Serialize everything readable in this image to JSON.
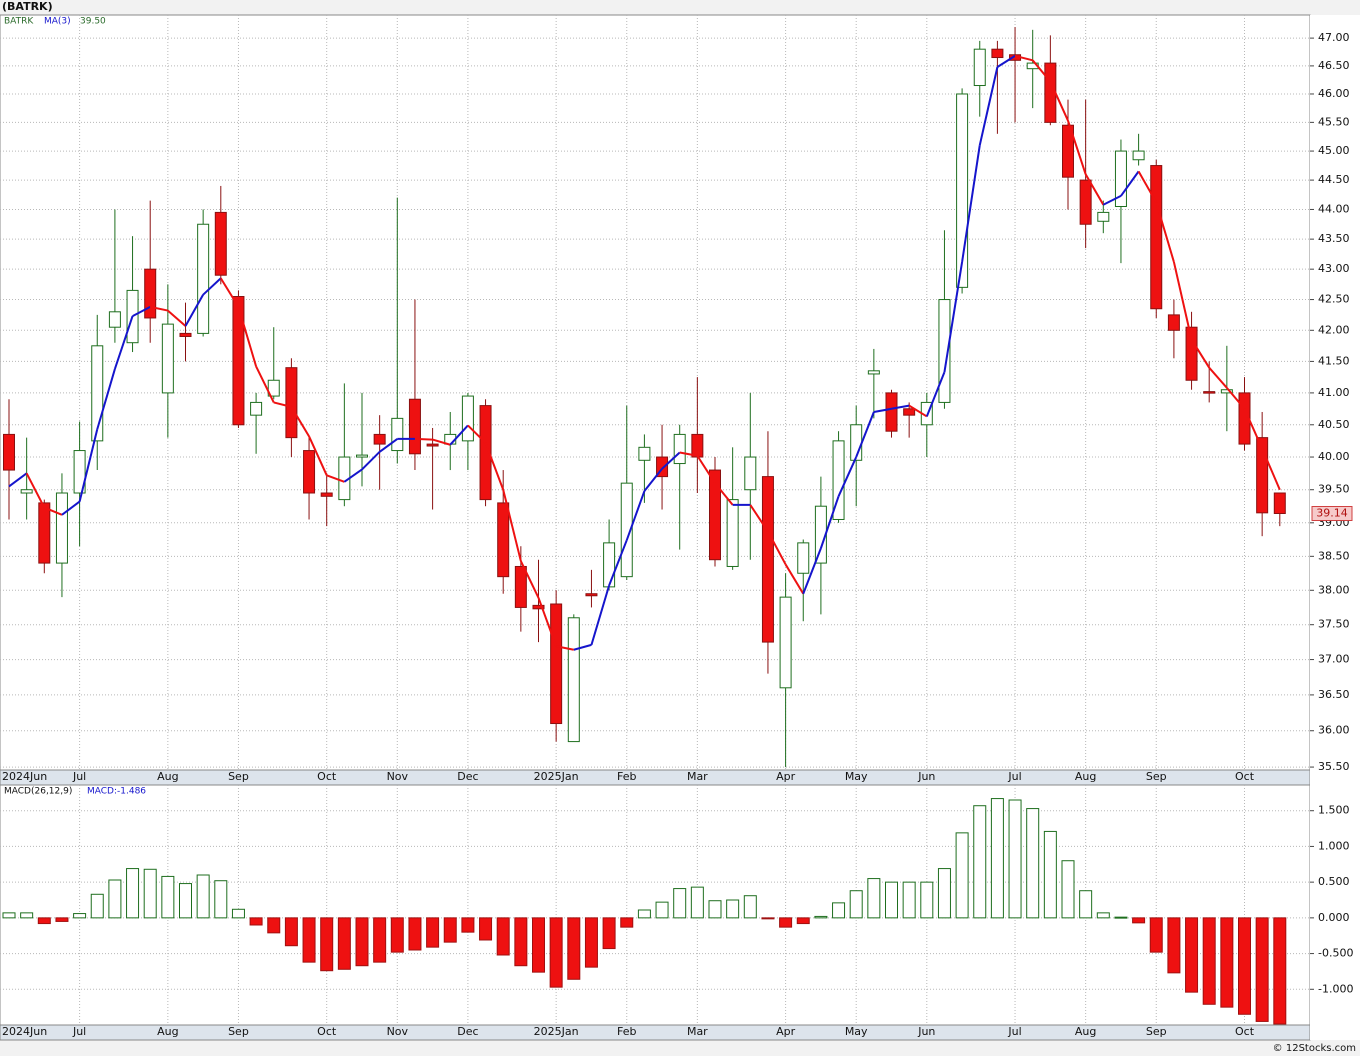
{
  "header": {
    "title": "(BATRK)"
  },
  "chart_data": [
    {
      "type": "candlestick",
      "symbol": "BATRK",
      "categories": [
        "2024Jun",
        null,
        null,
        null,
        "Jul",
        null,
        null,
        null,
        null,
        "Aug",
        null,
        null,
        null,
        "Sep",
        null,
        null,
        null,
        null,
        "Oct",
        null,
        null,
        null,
        "Nov",
        null,
        null,
        null,
        "Dec",
        null,
        null,
        null,
        null,
        "2025Jan",
        null,
        null,
        null,
        "Feb",
        null,
        null,
        null,
        "Mar",
        null,
        null,
        null,
        null,
        "Apr",
        null,
        null,
        null,
        "May",
        null,
        null,
        null,
        "Jun",
        null,
        null,
        null,
        null,
        "Jul",
        null,
        null,
        null,
        "Aug",
        null,
        null,
        null,
        "Sep",
        null,
        null,
        null,
        null,
        "Oct",
        null,
        null
      ],
      "open": [
        40.35,
        39.45,
        39.3,
        38.4,
        39.45,
        40.25,
        42.05,
        41.8,
        43.0,
        41.0,
        41.95,
        41.95,
        43.95,
        42.55,
        40.65,
        40.95,
        41.4,
        40.1,
        39.45,
        39.35,
        40.0,
        40.35,
        40.1,
        40.9,
        40.2,
        40.2,
        40.25,
        40.8,
        39.3,
        38.35,
        37.78,
        37.8,
        35.85,
        37.95,
        38.05,
        38.2,
        39.95,
        40.0,
        39.9,
        40.35,
        39.8,
        38.35,
        39.5,
        39.7,
        36.6,
        38.25,
        38.4,
        39.05,
        39.95,
        41.3,
        41.0,
        40.75,
        40.5,
        40.85,
        42.7,
        46.15,
        46.8,
        46.7,
        46.45,
        46.55,
        45.45,
        44.5,
        43.8,
        44.05,
        44.85,
        44.75,
        42.25,
        42.05,
        41.02,
        41.0,
        41.0,
        40.3,
        39.45
      ],
      "high": [
        40.9,
        40.3,
        39.35,
        39.75,
        40.55,
        42.25,
        44.0,
        43.55,
        44.15,
        42.75,
        42.45,
        44.0,
        44.4,
        42.65,
        41.0,
        42.05,
        41.55,
        40.3,
        39.75,
        41.15,
        41.0,
        40.65,
        44.2,
        42.5,
        40.45,
        40.7,
        41.0,
        40.9,
        39.8,
        38.65,
        38.45,
        38.0,
        37.65,
        38.3,
        39.05,
        40.8,
        40.35,
        40.5,
        40.5,
        41.25,
        40.0,
        40.15,
        41.0,
        40.4,
        38.25,
        38.75,
        39.7,
        40.4,
        40.8,
        41.7,
        41.05,
        40.85,
        41.0,
        43.65,
        46.1,
        46.95,
        46.95,
        47.2,
        47.15,
        47.05,
        45.9,
        45.9,
        44.15,
        45.2,
        45.3,
        44.85,
        42.5,
        42.3,
        41.5,
        41.75,
        41.25,
        40.7,
        39.45
      ],
      "low": [
        39.05,
        39.05,
        38.25,
        37.9,
        38.65,
        39.8,
        41.8,
        41.65,
        41.8,
        40.3,
        41.5,
        41.9,
        42.75,
        40.45,
        40.05,
        40.9,
        40.0,
        39.05,
        38.95,
        39.25,
        39.55,
        39.5,
        39.9,
        39.8,
        39.2,
        39.8,
        39.8,
        39.25,
        37.95,
        37.4,
        37.25,
        35.85,
        35.85,
        37.75,
        38.0,
        38.15,
        39.3,
        39.2,
        38.6,
        39.45,
        38.35,
        38.3,
        38.45,
        36.8,
        35.5,
        37.55,
        37.65,
        39.0,
        39.25,
        40.6,
        40.3,
        40.3,
        40.0,
        40.75,
        42.6,
        45.6,
        45.3,
        45.5,
        45.75,
        45.45,
        44.0,
        43.35,
        43.6,
        43.1,
        44.75,
        42.2,
        41.55,
        41.05,
        40.85,
        40.4,
        40.1,
        38.8,
        38.95
      ],
      "close": [
        39.8,
        39.5,
        38.4,
        39.45,
        40.1,
        41.75,
        42.3,
        42.65,
        42.2,
        42.1,
        41.9,
        43.75,
        42.9,
        40.5,
        40.85,
        41.2,
        40.3,
        39.45,
        39.4,
        40.0,
        40.03,
        40.2,
        40.6,
        40.05,
        40.17,
        40.35,
        40.95,
        39.35,
        38.2,
        37.75,
        37.73,
        36.1,
        37.6,
        37.92,
        38.7,
        39.6,
        40.15,
        39.7,
        40.35,
        40.0,
        38.45,
        39.35,
        40.0,
        37.25,
        37.9,
        38.7,
        39.25,
        40.25,
        40.5,
        41.35,
        40.4,
        40.65,
        40.85,
        42.5,
        46.0,
        46.8,
        46.65,
        46.6,
        46.55,
        45.5,
        44.55,
        43.75,
        43.95,
        45.0,
        45.0,
        42.35,
        42.0,
        41.2,
        41.0,
        41.05,
        40.2,
        39.15,
        39.14
      ],
      "last_label": "39.14",
      "up_color": "#1e6e1e",
      "down_color": "#ee1111",
      "ma": {
        "name": "MA(3)",
        "last_label": "39.50",
        "up_color": "#1515cc",
        "down_color": "#ee1111",
        "values": [
          39.55,
          39.75,
          39.23,
          39.12,
          39.32,
          40.43,
          41.38,
          42.23,
          42.38,
          42.32,
          42.07,
          42.58,
          42.85,
          42.38,
          41.42,
          40.85,
          40.78,
          40.32,
          39.72,
          39.62,
          39.81,
          40.08,
          40.28,
          40.28,
          40.27,
          40.19,
          40.49,
          40.22,
          39.5,
          38.43,
          37.89,
          37.19,
          37.14,
          37.21,
          38.07,
          38.74,
          39.48,
          39.82,
          40.07,
          40.02,
          39.6,
          39.27,
          39.27,
          38.87,
          38.38,
          37.95,
          38.62,
          39.4,
          40.0,
          40.7,
          40.75,
          40.8,
          40.63,
          41.33,
          43.12,
          45.1,
          46.48,
          46.68,
          46.6,
          46.22,
          45.53,
          44.6,
          44.08,
          44.23,
          44.65,
          44.12,
          43.12,
          41.85,
          41.4,
          41.08,
          40.75,
          40.13,
          39.5
        ]
      },
      "ylim": [
        35.46,
        47.42
      ],
      "log_scale": true,
      "grid": true,
      "yticks": [
        {
          "value": 35.5,
          "label": "35.50"
        },
        {
          "value": 36,
          "label": "36.00"
        },
        {
          "value": 36.5,
          "label": "36.50"
        },
        {
          "value": 37,
          "label": "37.00"
        },
        {
          "value": 37.5,
          "label": "37.50"
        },
        {
          "value": 38,
          "label": "38.00"
        },
        {
          "value": 38.5,
          "label": "38.50"
        },
        {
          "value": 39,
          "label": "39.00"
        },
        {
          "value": 39.5,
          "label": "39.50"
        },
        {
          "value": 40,
          "label": "40.00"
        },
        {
          "value": 40.5,
          "label": "40.50"
        },
        {
          "value": 41,
          "label": "41.00"
        },
        {
          "value": 41.5,
          "label": "41.50"
        },
        {
          "value": 42,
          "label": "42.00"
        },
        {
          "value": 42.5,
          "label": "42.50"
        },
        {
          "value": 43,
          "label": "43.00"
        },
        {
          "value": 43.5,
          "label": "43.50"
        },
        {
          "value": 44,
          "label": "44.00"
        },
        {
          "value": 44.5,
          "label": "44.50"
        },
        {
          "value": 45,
          "label": "45.00"
        },
        {
          "value": 45.5,
          "label": "45.50"
        },
        {
          "value": 46,
          "label": "46.00"
        },
        {
          "value": 46.5,
          "label": "46.50"
        },
        {
          "value": 47,
          "label": "47.00"
        }
      ]
    },
    {
      "type": "bar",
      "name": "MACD(26,12,9)",
      "current_label": "MACD:-1.486",
      "up_color": "#1e6e1e",
      "down_color": "#ee1111",
      "values": [
        0.07,
        0.07,
        -0.08,
        -0.05,
        0.06,
        0.33,
        0.53,
        0.69,
        0.68,
        0.58,
        0.48,
        0.6,
        0.52,
        0.12,
        -0.1,
        -0.21,
        -0.39,
        -0.62,
        -0.74,
        -0.72,
        -0.67,
        -0.62,
        -0.48,
        -0.45,
        -0.41,
        -0.34,
        -0.2,
        -0.31,
        -0.52,
        -0.67,
        -0.76,
        -0.97,
        -0.86,
        -0.69,
        -0.43,
        -0.13,
        0.11,
        0.22,
        0.41,
        0.43,
        0.24,
        0.25,
        0.31,
        -0.01,
        -0.13,
        -0.08,
        0.02,
        0.21,
        0.38,
        0.55,
        0.5,
        0.5,
        0.5,
        0.69,
        1.19,
        1.57,
        1.67,
        1.65,
        1.53,
        1.21,
        0.8,
        0.38,
        0.07,
        0.01,
        -0.07,
        -0.48,
        -0.77,
        -1.04,
        -1.21,
        -1.25,
        -1.35,
        -1.45,
        -1.486
      ],
      "ylim": [
        -1.5,
        1.86
      ],
      "grid": true,
      "yticks": [
        {
          "value": -1,
          "label": "-1.000"
        },
        {
          "value": -0.5,
          "label": "-0.500"
        },
        {
          "value": 0,
          "label": "0.000"
        },
        {
          "value": 0.5,
          "label": "0.500"
        },
        {
          "value": 1,
          "label": "1.000"
        },
        {
          "value": 1.5,
          "label": "1.500"
        }
      ]
    }
  ],
  "footer": {
    "credit": "© 12Stocks.com"
  }
}
